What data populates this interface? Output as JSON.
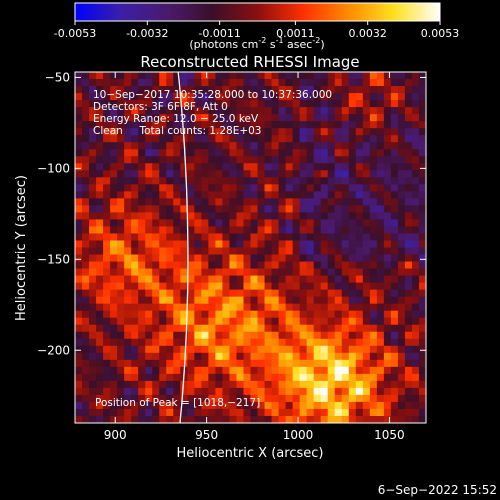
{
  "colorbar": {
    "ticks": [
      "-0.0053",
      "-0.0032",
      "-0.0011",
      "0.0011",
      "0.0032",
      "0.0053"
    ],
    "tick_values": [
      -0.0053,
      -0.0032,
      -0.0011,
      0.0011,
      0.0032,
      0.0053
    ],
    "unit_main": "(photons cm",
    "unit_sup1": "-2",
    "unit_mid": " s",
    "unit_sup2": "-1",
    "unit_mid2": " asec",
    "unit_sup3": "-2",
    "unit_end": ")",
    "colors": [
      "#0000ff",
      "#3b1fa8",
      "#4b1a6e",
      "#3a0f2a",
      "#8a0f0f",
      "#ff3000",
      "#ff8c00",
      "#ffe020",
      "#ffffff"
    ]
  },
  "chart_data": {
    "type": "heatmap",
    "title": "Reconstructed RHESSI Image",
    "xlabel": "Heliocentric X (arcsec)",
    "ylabel": "Heliocentric Y (arcsec)",
    "xlim": [
      878,
      1070
    ],
    "ylim": [
      -240,
      -47
    ],
    "x_ticks": [
      900,
      950,
      1000,
      1050
    ],
    "y_ticks": [
      -50,
      -100,
      -150,
      -200
    ],
    "x_tick_labels": [
      "900",
      "950",
      "1000",
      "1050"
    ],
    "y_tick_labels": [
      "−50",
      "−100",
      "−150",
      "−200"
    ],
    "peak_position": [
      1018,
      -217
    ],
    "limb": {
      "shown": true,
      "color": "#ffffff"
    }
  },
  "annotations": {
    "line1": "10−Sep−2017 10:35:28.000 to 10:37:36.000",
    "line2": "Detectors: 3F 6F 8F, Att 0",
    "line3": "Energy Range: 12.0 − 25.0 keV",
    "line4": "Clean     Total counts: 1.28E+03",
    "peak": "Position of Peak = [1018,−217]"
  },
  "footer": {
    "timestamp": "6−Sep−2022 15:52"
  }
}
